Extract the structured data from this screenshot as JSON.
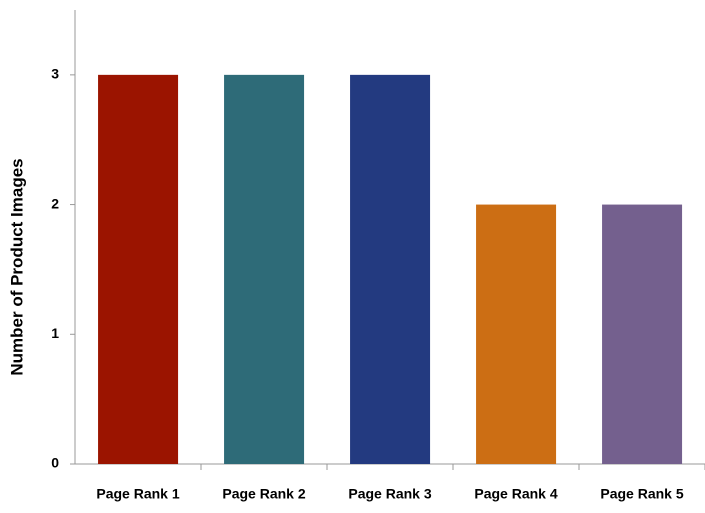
{
  "chart_data": {
    "type": "bar",
    "y_label": "Number of Product Images",
    "categories": [
      "Page Rank 1",
      "Page Rank 2",
      "Page Rank 3",
      "Page Rank 4",
      "Page Rank 5"
    ],
    "values": [
      3,
      3,
      3,
      2,
      2
    ],
    "colors": [
      "#9b1400",
      "#2e6b78",
      "#233a80",
      "#cc6e14",
      "#74608e"
    ],
    "ylim": [
      0,
      3.5
    ],
    "yticks": [
      0,
      1,
      2,
      3
    ],
    "grid": false
  }
}
